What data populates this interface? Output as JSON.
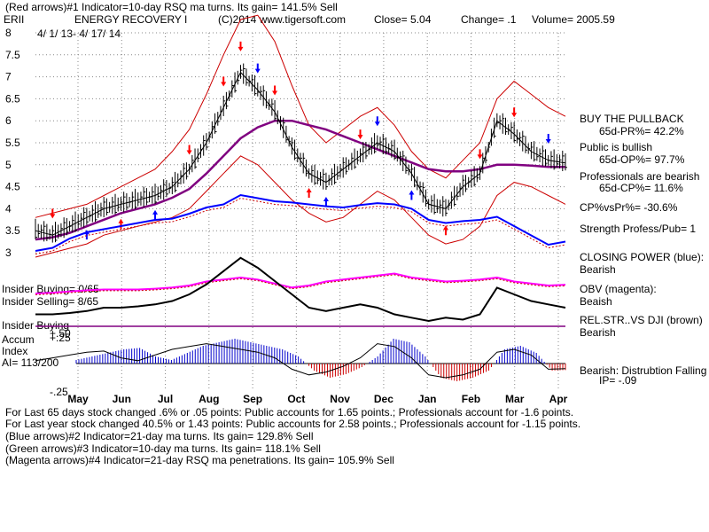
{
  "header": {
    "line1": "(Red arrows)#1 Indicator=10-day RSQ ma turns. Its gain= 141.5% Sell",
    "ticker": "ERII",
    "company": "ENERGY RECOVERY I",
    "copyright": "(C)2014 www.tigersoft.com",
    "close": "Close=  5.04",
    "change": "Change= .1",
    "volume": "Volume= 2005.59",
    "daterange": "4/ 1/ 13-  4/ 17/ 14"
  },
  "right_panel": {
    "buy_pullback": "BUY THE PULLBACK",
    "pr65": "65d-PR%= 42.2%",
    "public_bullish": "Public is bullish",
    "op65": "65d-OP%= 97.7%",
    "pros_bearish": "Professionals are bearish",
    "cp65": "65d-CP%= 11.6%",
    "cp_vs_pr": "CP%vsPr%= -30.6%",
    "strength": "Strength Profess/Pub= 1",
    "closing_power": "CLOSING POWER (blue):",
    "closing_power_val": "Bearish",
    "obv": "OBV (magenta):",
    "obv_val": "Beaish",
    "relstr": "REL.STR..VS DJI (brown)",
    "relstr_val": "Bearish",
    "bearish_dist": "Bearish: Distrubtion Falling",
    "ip": "IP= -.09"
  },
  "left_labels": {
    "insider_buying": "Insider Buying= 0/65",
    "insider_selling": "Insider Selling= 8/65",
    "insider_buying2": "Insider Buying",
    "accum": "Accum",
    "index": "Index",
    "ai": "AI= 113/200",
    "plus50": "+.50",
    "plus25": "+.25",
    "minus25": "-.25"
  },
  "footer": {
    "line1": "For Last 65 days stock changed  .6% or  .05 points:  Public accounts for  1.65 points.;  Professionals account for -1.6 points.",
    "line2": "For Last year stock changed  40.5% or 1.43 points:  Public accounts for  2.58 points.;  Professionals account for -1.15 points.",
    "line3": "(Blue arrows)#2 Indicator=21-day ma turns. Its gain= 129.8% Sell",
    "line4": "(Green arrows)#3 Indicator=10-day ma turns. Its gain= 118.1% Sell",
    "line5": "(Magenta arrows)#4 Indicator=21-day RSQ ma penetrations. Its gain= 105.9% Sell"
  },
  "colors": {
    "price_bars": "#000000",
    "ma65": "#800080",
    "bands": "#cc0000",
    "closing_power": "#0000ff",
    "obv": "#ff00ff",
    "relstr": "#000000",
    "accum_pos": "#0000cc",
    "accum_neg": "#cc0000",
    "hline": "#800080"
  },
  "chart_data": {
    "type": "line",
    "y_ticks": [
      "8",
      "7.5",
      "7",
      "6.5",
      "6",
      "5.5",
      "5",
      "4.5",
      "4",
      "3.5",
      "3"
    ],
    "months": [
      "May",
      "Jun",
      "Jul",
      "Aug",
      "Sep",
      "Oct",
      "Nov",
      "Dec",
      "Jan",
      "Feb",
      "Mar",
      "Apr"
    ],
    "ylim": [
      3,
      8
    ],
    "close_price": [
      3.5,
      3.4,
      3.6,
      3.8,
      4.0,
      4.1,
      4.2,
      4.3,
      4.5,
      4.9,
      5.5,
      6.3,
      7.1,
      6.7,
      6.2,
      5.4,
      4.8,
      4.6,
      4.9,
      5.2,
      5.5,
      5.3,
      4.8,
      4.1,
      4.0,
      4.5,
      4.8,
      6.0,
      5.7,
      5.3,
      5.1,
      5.04
    ],
    "ma65": [
      3.3,
      3.35,
      3.45,
      3.6,
      3.75,
      3.9,
      4.0,
      4.1,
      4.25,
      4.45,
      4.8,
      5.2,
      5.6,
      5.85,
      6.0,
      6.0,
      5.9,
      5.8,
      5.65,
      5.5,
      5.35,
      5.2,
      5.05,
      4.9,
      4.85,
      4.85,
      4.9,
      5.0,
      5.0,
      4.98,
      4.95,
      4.95
    ],
    "upper_band": [
      3.8,
      3.9,
      4.0,
      4.1,
      4.3,
      4.5,
      4.7,
      4.9,
      5.3,
      5.8,
      6.6,
      7.5,
      8.3,
      8.4,
      7.8,
      6.8,
      5.9,
      5.5,
      5.8,
      6.1,
      6.3,
      5.9,
      5.3,
      4.9,
      4.7,
      5.1,
      5.5,
      6.5,
      6.9,
      6.6,
      6.3,
      6.1
    ],
    "lower_band": [
      2.9,
      3.0,
      3.1,
      3.2,
      3.4,
      3.5,
      3.6,
      3.7,
      3.8,
      4.0,
      4.4,
      4.8,
      5.2,
      5.0,
      4.6,
      4.2,
      3.9,
      3.7,
      3.8,
      4.1,
      4.4,
      4.2,
      3.8,
      3.4,
      3.2,
      3.3,
      3.6,
      4.3,
      4.6,
      4.5,
      4.3,
      4.1
    ],
    "closing_power": [
      0.1,
      0.15,
      0.3,
      0.4,
      0.45,
      0.5,
      0.55,
      0.6,
      0.62,
      0.7,
      0.8,
      0.85,
      1.0,
      0.95,
      0.9,
      0.88,
      0.85,
      0.82,
      0.8,
      0.84,
      0.87,
      0.85,
      0.78,
      0.6,
      0.55,
      0.58,
      0.6,
      0.65,
      0.5,
      0.35,
      0.2,
      0.25
    ],
    "obv": [
      0.2,
      0.22,
      0.25,
      0.28,
      0.3,
      0.3,
      0.3,
      0.32,
      0.35,
      0.4,
      0.5,
      0.55,
      0.6,
      0.55,
      0.45,
      0.35,
      0.4,
      0.5,
      0.55,
      0.6,
      0.65,
      0.7,
      0.6,
      0.55,
      0.5,
      0.52,
      0.55,
      0.6,
      0.5,
      0.45,
      0.4,
      0.42
    ],
    "relstr": [
      0.1,
      0.1,
      0.12,
      0.15,
      0.2,
      0.2,
      0.22,
      0.25,
      0.3,
      0.4,
      0.55,
      0.75,
      0.95,
      0.8,
      0.6,
      0.4,
      0.2,
      0.15,
      0.2,
      0.25,
      0.2,
      0.1,
      0.05,
      0.0,
      0.05,
      0.02,
      0.1,
      0.5,
      0.4,
      0.3,
      0.25,
      0.2
    ],
    "accum_index": [
      0.05,
      0.1,
      0.15,
      0.2,
      0.22,
      0.1,
      0.05,
      0.15,
      0.25,
      0.3,
      0.35,
      0.3,
      0.25,
      0.2,
      0.1,
      -0.1,
      -0.2,
      -0.15,
      -0.05,
      0.1,
      0.35,
      0.3,
      0.1,
      -0.2,
      -0.25,
      -0.2,
      -0.1,
      0.2,
      0.25,
      0.15,
      -0.1,
      -0.09
    ],
    "accum_ticks": [
      "+.50",
      "+.25",
      "-.25"
    ]
  }
}
